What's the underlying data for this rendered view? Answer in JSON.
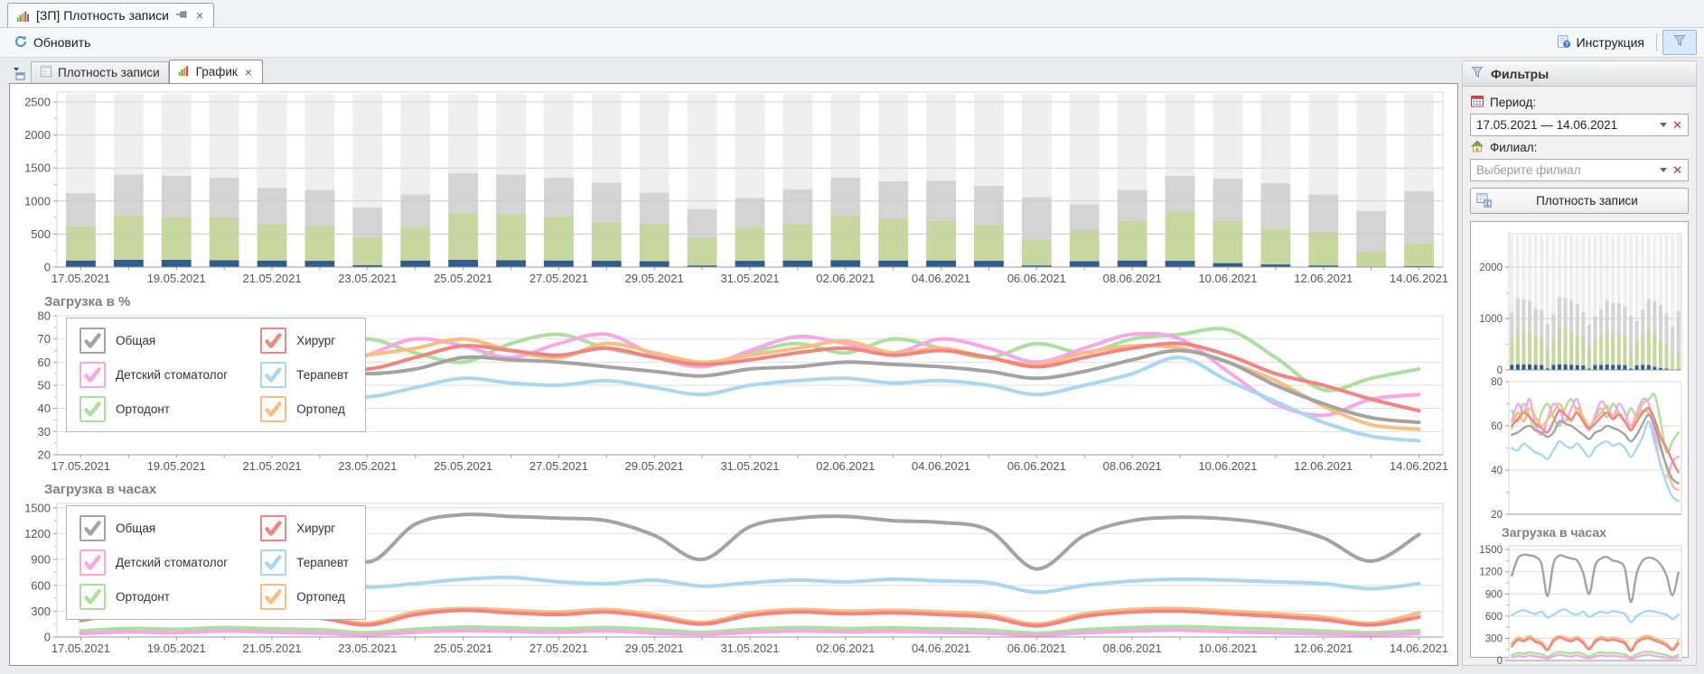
{
  "window": {
    "tab_title": "[ЗП] Плотность записи"
  },
  "toolbar": {
    "refresh": "Обновить",
    "instruction": "Инструкция"
  },
  "doc_tabs": {
    "tab1": "Плотность записи",
    "tab2": "График"
  },
  "filters": {
    "header": "Фильтры",
    "period_label": "Период:",
    "period_value": "17.05.2021 — 14.06.2021",
    "branch_label": "Филиал:",
    "branch_placeholder": "Выберите филиал",
    "density_button": "Плотность записи"
  },
  "colors": {
    "bar_navy": "#2f5b8e",
    "bar_green": "#c6d89f",
    "bar_gray": "#d4d4d4",
    "bar_light": "#efefef",
    "filter_active_bg": "#d9eafc"
  },
  "chart_data": [
    {
      "type": "bar",
      "title": "",
      "stacked": true,
      "ylim": [
        0,
        2650
      ],
      "yticks": [
        0,
        500,
        1000,
        1500,
        2000,
        2500
      ],
      "yticks_mini": [
        0,
        1000,
        2000
      ],
      "tick_every": 2,
      "categories": [
        "17.05.2021",
        "18.05.2021",
        "19.05.2021",
        "20.05.2021",
        "21.05.2021",
        "22.05.2021",
        "23.05.2021",
        "24.05.2021",
        "25.05.2021",
        "26.05.2021",
        "27.05.2021",
        "28.05.2021",
        "29.05.2021",
        "30.05.2021",
        "31.05.2021",
        "01.06.2021",
        "02.06.2021",
        "03.06.2021",
        "04.06.2021",
        "05.06.2021",
        "06.06.2021",
        "07.06.2021",
        "08.06.2021",
        "09.06.2021",
        "10.06.2021",
        "11.06.2021",
        "12.06.2021",
        "13.06.2021",
        "14.06.2021"
      ],
      "series": [
        {
          "name": "navy",
          "color": "#2f5b8e",
          "values": [
            100,
            110,
            110,
            105,
            100,
            95,
            30,
            100,
            110,
            105,
            100,
            95,
            90,
            25,
            95,
            100,
            105,
            100,
            100,
            95,
            25,
            90,
            100,
            95,
            60,
            40,
            25,
            10,
            15
          ]
        },
        {
          "name": "green",
          "color": "#c6d89f",
          "values": [
            520,
            670,
            650,
            645,
            550,
            520,
            420,
            500,
            710,
            695,
            660,
            585,
            570,
            425,
            505,
            550,
            675,
            630,
            600,
            545,
            395,
            470,
            600,
            745,
            640,
            540,
            500,
            230,
            350
          ]
        },
        {
          "name": "gray",
          "color": "#d4d4d4",
          "values": [
            500,
            620,
            620,
            600,
            550,
            555,
            450,
            500,
            600,
            600,
            590,
            600,
            470,
            430,
            450,
            530,
            570,
            570,
            610,
            590,
            640,
            390,
            470,
            540,
            640,
            690,
            575,
            610,
            785
          ]
        },
        {
          "name": "light",
          "color": "#efefef",
          "values": [
            1500,
            1220,
            1240,
            1270,
            1420,
            1450,
            1720,
            1520,
            1200,
            1220,
            1270,
            1340,
            1490,
            1740,
            1570,
            1440,
            1270,
            1320,
            1310,
            1390,
            1560,
            1670,
            1450,
            1240,
            1280,
            1350,
            1520,
            1770,
            1470
          ]
        }
      ]
    },
    {
      "type": "line",
      "title": "Загрузка в %",
      "ylim": [
        20,
        80
      ],
      "yticks": [
        20,
        30,
        40,
        50,
        60,
        70,
        80
      ],
      "yticks_mini": [
        20,
        40,
        60,
        80
      ],
      "tick_every": 2,
      "categories": [
        "17.05.2021",
        "18.05.2021",
        "19.05.2021",
        "20.05.2021",
        "21.05.2021",
        "22.05.2021",
        "23.05.2021",
        "24.05.2021",
        "25.05.2021",
        "26.05.2021",
        "27.05.2021",
        "28.05.2021",
        "29.05.2021",
        "30.05.2021",
        "31.05.2021",
        "01.06.2021",
        "02.06.2021",
        "03.06.2021",
        "04.06.2021",
        "05.06.2021",
        "06.06.2021",
        "07.06.2021",
        "08.06.2021",
        "09.06.2021",
        "10.06.2021",
        "11.06.2021",
        "12.06.2021",
        "13.06.2021",
        "14.06.2021"
      ],
      "series": [
        {
          "name": "Общая",
          "color": "#a3a3a3",
          "values": [
            56,
            57,
            59,
            60,
            58,
            57,
            55,
            57,
            62,
            61,
            60,
            58,
            56,
            54,
            57,
            58,
            60,
            59,
            58,
            56,
            53,
            56,
            61,
            65,
            60,
            50,
            42,
            36,
            34
          ]
        },
        {
          "name": "Детский стоматолог",
          "color": "#f7a6e8",
          "values": [
            62,
            70,
            66,
            72,
            60,
            56,
            63,
            70,
            67,
            62,
            68,
            72,
            63,
            58,
            65,
            71,
            68,
            64,
            70,
            66,
            60,
            66,
            72,
            70,
            56,
            42,
            37,
            44,
            46
          ]
        },
        {
          "name": "Ортодонт",
          "color": "#abdf9e",
          "values": [
            67,
            62,
            70,
            64,
            58,
            66,
            70,
            64,
            60,
            68,
            72,
            66,
            62,
            58,
            64,
            68,
            64,
            70,
            66,
            62,
            68,
            64,
            70,
            72,
            74,
            62,
            48,
            53,
            57
          ]
        },
        {
          "name": "Хирург",
          "color": "#f08480",
          "values": [
            60,
            63,
            66,
            64,
            61,
            59,
            57,
            62,
            67,
            65,
            63,
            66,
            62,
            59,
            61,
            64,
            66,
            63,
            65,
            62,
            58,
            62,
            66,
            68,
            63,
            55,
            50,
            44,
            39
          ]
        },
        {
          "name": "Терапевт",
          "color": "#a9d7f2",
          "values": [
            50,
            49,
            52,
            50,
            48,
            47,
            45,
            49,
            53,
            51,
            50,
            52,
            49,
            46,
            50,
            52,
            53,
            51,
            52,
            50,
            46,
            50,
            55,
            62,
            52,
            43,
            34,
            28,
            26
          ]
        },
        {
          "name": "Ортопед",
          "color": "#f7bd82",
          "values": [
            59,
            66,
            62,
            68,
            64,
            60,
            63,
            66,
            70,
            65,
            62,
            68,
            64,
            60,
            63,
            66,
            69,
            64,
            66,
            62,
            59,
            64,
            67,
            66,
            60,
            52,
            41,
            33,
            31
          ]
        }
      ]
    },
    {
      "type": "line",
      "title": "Загрузка в часах",
      "ylim": [
        0,
        1550
      ],
      "yticks": [
        0,
        300,
        600,
        900,
        1200,
        1500
      ],
      "yticks_mini": [
        0,
        300,
        600,
        900,
        1200,
        1500
      ],
      "tick_every": 2,
      "categories": [
        "17.05.2021",
        "18.05.2021",
        "19.05.2021",
        "20.05.2021",
        "21.05.2021",
        "22.05.2021",
        "23.05.2021",
        "24.05.2021",
        "25.05.2021",
        "26.05.2021",
        "27.05.2021",
        "28.05.2021",
        "29.05.2021",
        "30.05.2021",
        "31.05.2021",
        "01.06.2021",
        "02.06.2021",
        "03.06.2021",
        "04.06.2021",
        "05.06.2021",
        "06.06.2021",
        "07.06.2021",
        "08.06.2021",
        "09.06.2021",
        "10.06.2021",
        "11.06.2021",
        "12.06.2021",
        "13.06.2021",
        "14.06.2021"
      ],
      "series": [
        {
          "name": "Общая",
          "color": "#a3a3a3",
          "values": [
            1150,
            1380,
            1430,
            1420,
            1400,
            1300,
            870,
            1310,
            1420,
            1400,
            1380,
            1350,
            1180,
            900,
            1280,
            1380,
            1400,
            1350,
            1330,
            1240,
            790,
            1180,
            1350,
            1390,
            1370,
            1300,
            1150,
            880,
            1190
          ]
        },
        {
          "name": "Детский стоматолог",
          "color": "#f7a6e8",
          "values": [
            40,
            60,
            50,
            70,
            55,
            45,
            25,
            55,
            75,
            65,
            55,
            70,
            45,
            30,
            55,
            70,
            60,
            65,
            55,
            45,
            20,
            50,
            70,
            80,
            60,
            50,
            35,
            25,
            40
          ]
        },
        {
          "name": "Ортодонт",
          "color": "#abdf9e",
          "values": [
            70,
            100,
            90,
            110,
            95,
            85,
            50,
            90,
            115,
            105,
            95,
            110,
            85,
            55,
            90,
            110,
            100,
            105,
            95,
            80,
            45,
            85,
            110,
            120,
            105,
            90,
            70,
            50,
            75
          ]
        },
        {
          "name": "Хирург",
          "color": "#f08480",
          "values": [
            190,
            280,
            260,
            300,
            250,
            220,
            140,
            260,
            310,
            280,
            260,
            290,
            230,
            150,
            250,
            290,
            270,
            280,
            260,
            230,
            130,
            240,
            290,
            300,
            270,
            240,
            200,
            140,
            230
          ]
        },
        {
          "name": "Терапевт",
          "color": "#a9d7f2",
          "values": [
            610,
            660,
            680,
            650,
            630,
            660,
            580,
            620,
            670,
            690,
            640,
            620,
            660,
            590,
            630,
            660,
            640,
            670,
            650,
            630,
            520,
            600,
            650,
            670,
            660,
            640,
            620,
            560,
            620
          ]
        },
        {
          "name": "Ортопед",
          "color": "#f7bd82",
          "values": [
            230,
            310,
            290,
            330,
            280,
            250,
            160,
            290,
            330,
            310,
            290,
            320,
            260,
            170,
            280,
            320,
            300,
            310,
            290,
            260,
            150,
            270,
            320,
            330,
            300,
            270,
            230,
            160,
            280
          ]
        }
      ]
    }
  ]
}
